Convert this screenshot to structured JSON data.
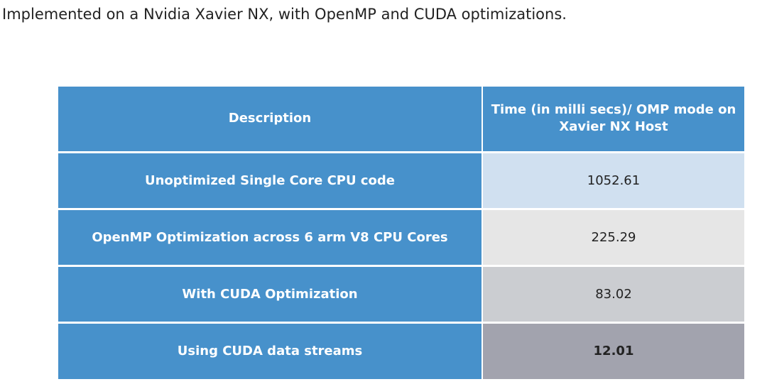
{
  "intro": "Implemented on a Nvidia Xavier NX, with OpenMP and CUDA optimizations.",
  "table": {
    "headers": [
      "Description",
      "Time (in milli secs)/ OMP mode on Xavier NX Host"
    ],
    "rows": [
      {
        "description": "Unoptimized Single Core CPU code",
        "time": "1052.61"
      },
      {
        "description": "OpenMP Optimization across 6 arm V8 CPU Cores",
        "time": "225.29"
      },
      {
        "description": "With CUDA Optimization",
        "time": "83.02"
      },
      {
        "description": "Using CUDA data streams",
        "time": "12.01"
      }
    ]
  },
  "colors": {
    "header_blue": "#4791cb",
    "row1_value_bg": "#d0e0f0",
    "row2_value_bg": "#e6e6e6",
    "row3_value_bg": "#cbcdd1",
    "row4_value_bg": "#a2a3ae"
  }
}
